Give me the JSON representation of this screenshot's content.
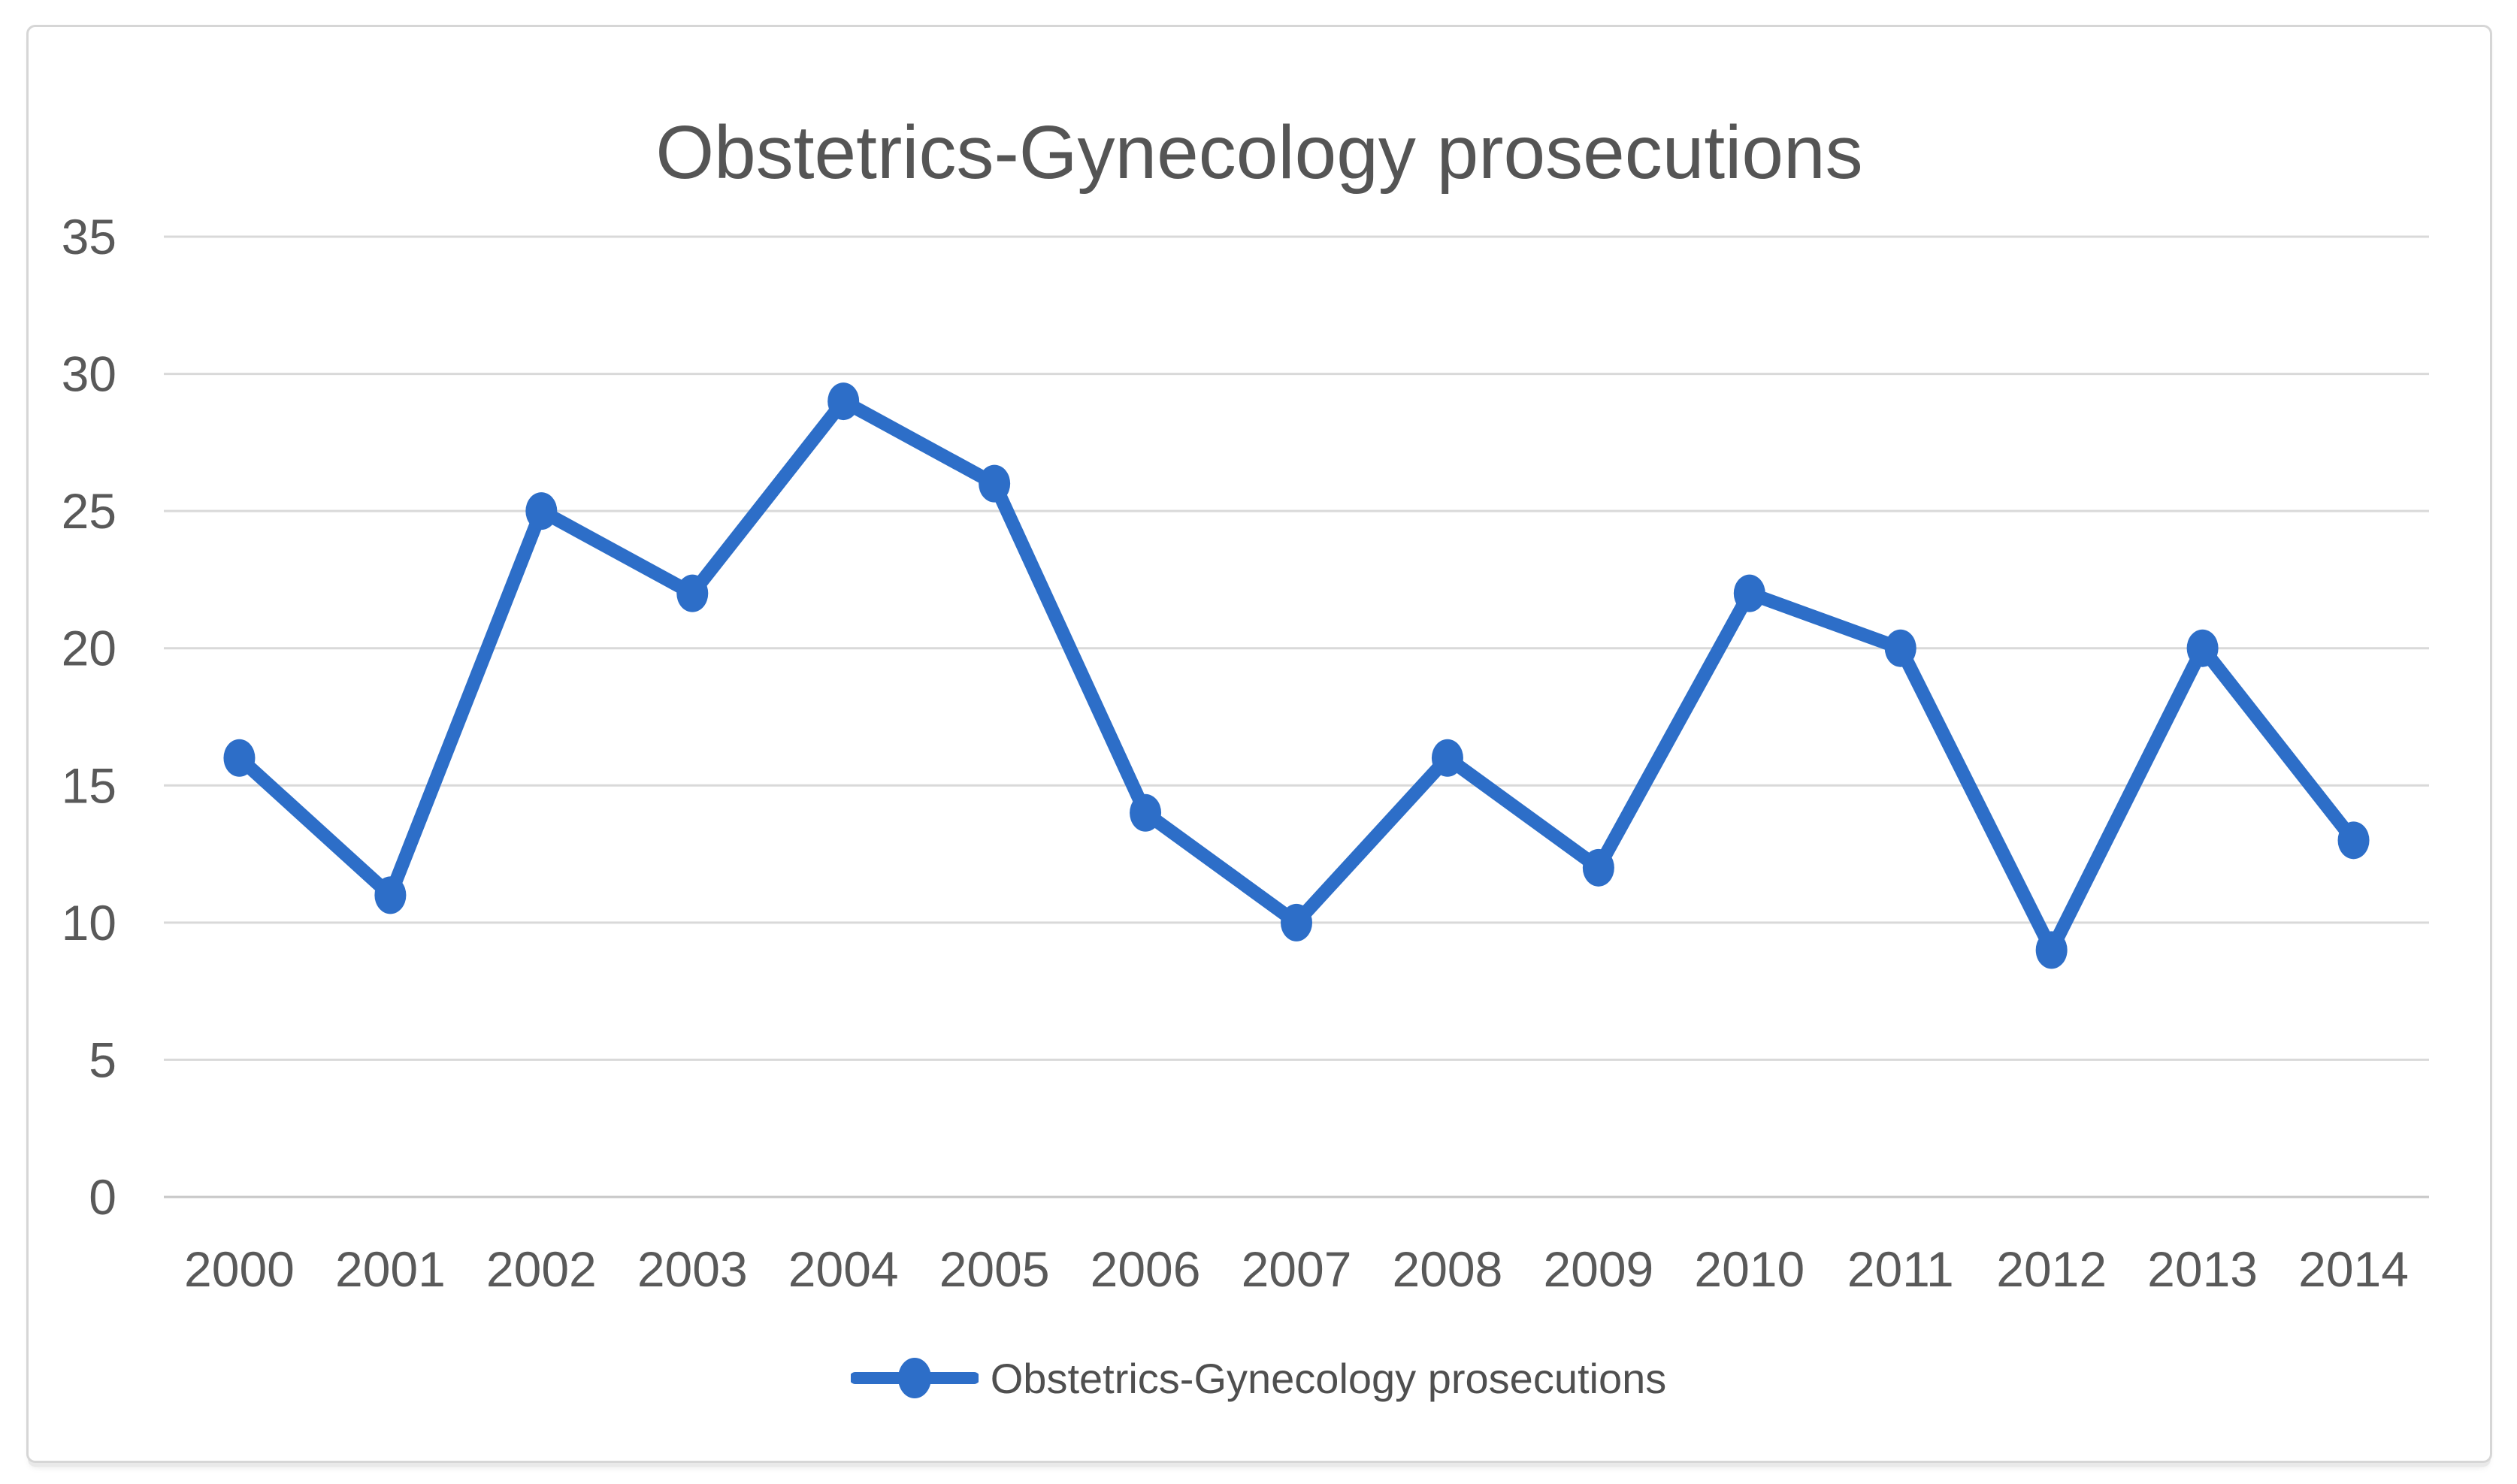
{
  "chart_data": {
    "type": "line",
    "title": "Obstetrics-Gynecology prosecutions",
    "categories": [
      "2000",
      "2001",
      "2002",
      "2003",
      "2004",
      "2005",
      "2006",
      "2007",
      "2008",
      "2009",
      "2010",
      "2011",
      "2012",
      "2013",
      "2014"
    ],
    "series": [
      {
        "name": "Obstetrics-Gynecology prosecutions",
        "values": [
          16,
          11,
          25,
          22,
          29,
          26,
          14,
          10,
          16,
          12,
          22,
          20,
          9,
          20,
          13
        ]
      }
    ],
    "xlabel": "",
    "ylabel": "",
    "y_axis": {
      "min": 0,
      "max": 35,
      "tick_step": 5,
      "ticks": [
        35,
        30,
        25,
        20,
        15,
        10,
        5,
        0
      ]
    },
    "x_axis": {
      "type": "category"
    },
    "grid": "horizontal",
    "legend_position": "bottom",
    "marker_shape": "circle"
  },
  "colors": {
    "series_line": "#2D6EC8",
    "gridline": "#D9D9D9",
    "zero_axis_line": "#C7C7C7",
    "tick_text": "#595959",
    "title_text": "#555555",
    "legend_text": "#4F4F4F",
    "frame_border": "#D6D6D6",
    "background": "#FFFFFF"
  }
}
